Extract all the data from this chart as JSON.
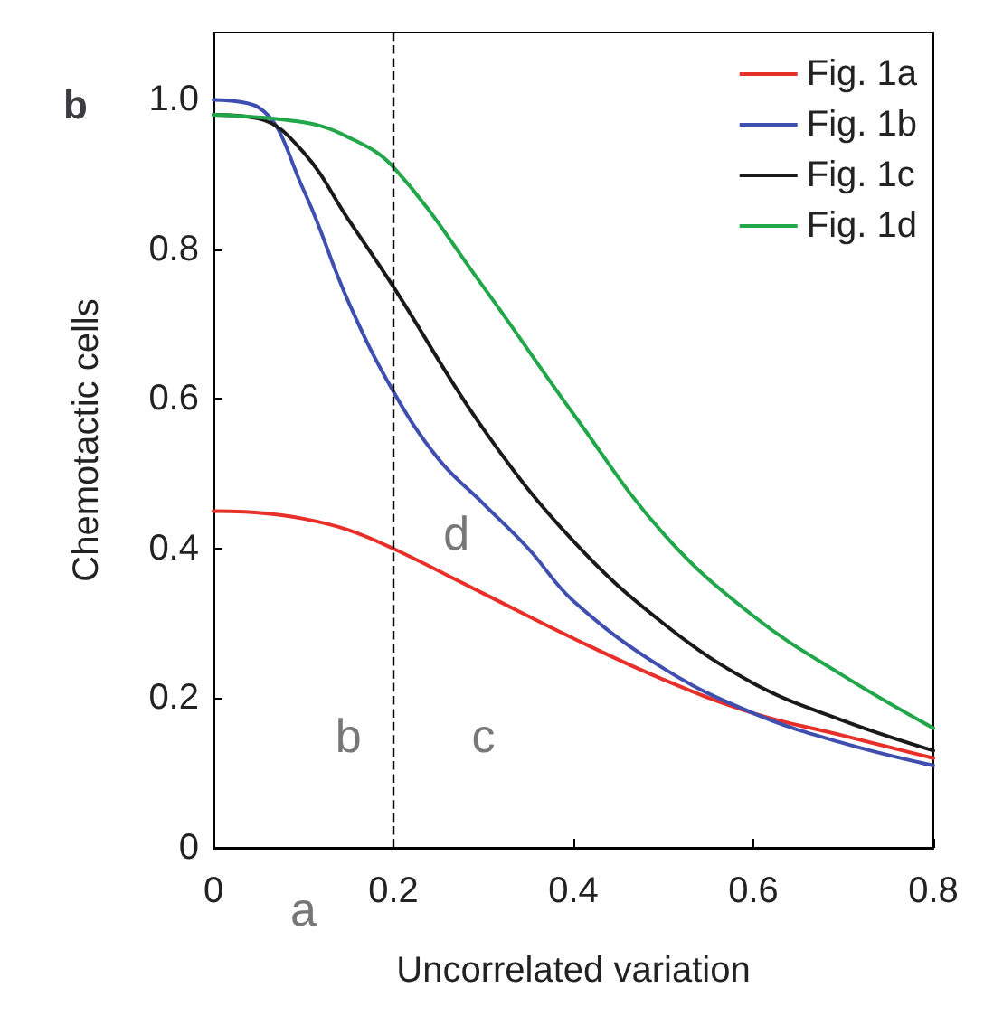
{
  "chart_data": {
    "type": "line",
    "title": "b",
    "xlabel": "Uncorrelated variation",
    "ylabel": "Chemotactic cells",
    "xlim": [
      0,
      0.8
    ],
    "ylim": [
      0,
      1.09
    ],
    "xticks": [
      0,
      0.2,
      0.4,
      0.6,
      0.8
    ],
    "yticks": [
      0,
      0.2,
      0.4,
      0.6,
      0.8,
      {
        "value": 1,
        "label": "1.0"
      }
    ],
    "grid": false,
    "legend": "top right",
    "marker": "none",
    "line_style": "solid",
    "ref_lines": [
      {
        "axis": "x",
        "value": 0.2,
        "line_style": "dashed",
        "color": "#000000"
      }
    ],
    "annotations": [
      "a",
      "b",
      "c",
      "d"
    ],
    "series": [
      {
        "name": "Fig. 1a",
        "color": "#e8302a",
        "x": [
          0,
          0.05,
          0.1,
          0.15,
          0.2,
          0.3,
          0.4,
          0.5,
          0.6,
          0.7,
          0.8
        ],
        "values": [
          0.45,
          0.448,
          0.44,
          0.425,
          0.4,
          0.34,
          0.28,
          0.225,
          0.18,
          0.15,
          0.12
        ]
      },
      {
        "name": "Fig. 1b",
        "color": "#3f4fb0",
        "x": [
          0,
          0.05,
          0.1,
          0.15,
          0.2,
          0.25,
          0.3,
          0.35,
          0.4,
          0.5,
          0.6,
          0.7,
          0.8
        ],
        "values": [
          1.0,
          0.99,
          0.88,
          0.73,
          0.61,
          0.52,
          0.46,
          0.4,
          0.33,
          0.24,
          0.18,
          0.14,
          0.11
        ]
      },
      {
        "name": "Fig. 1c",
        "color": "#1a1a1a",
        "x": [
          0,
          0.05,
          0.1,
          0.15,
          0.2,
          0.3,
          0.4,
          0.5,
          0.6,
          0.7,
          0.8
        ],
        "values": [
          0.98,
          0.975,
          0.93,
          0.84,
          0.75,
          0.56,
          0.41,
          0.3,
          0.22,
          0.17,
          0.13
        ]
      },
      {
        "name": "Fig. 1d",
        "color": "#22a64a",
        "x": [
          0,
          0.1,
          0.15,
          0.2,
          0.3,
          0.4,
          0.5,
          0.6,
          0.7,
          0.8
        ],
        "values": [
          0.98,
          0.97,
          0.95,
          0.91,
          0.75,
          0.58,
          0.42,
          0.31,
          0.23,
          0.16
        ]
      }
    ]
  }
}
